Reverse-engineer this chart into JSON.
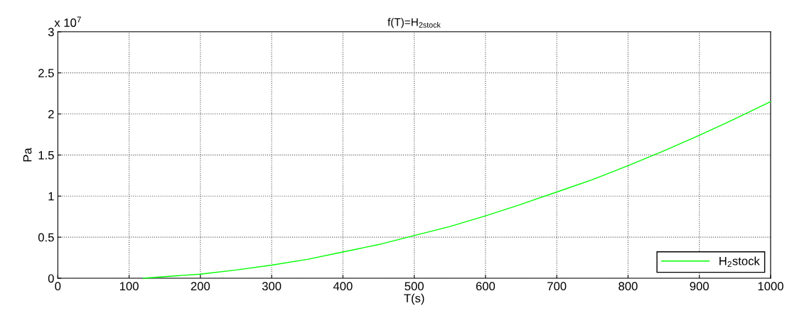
{
  "chart_data": {
    "type": "line",
    "title": "f(T)=H$_{2stock}$",
    "xlabel": "T(s)",
    "ylabel": "Pa",
    "annotations": [
      "x 10$^{7}$"
    ],
    "x": [
      120,
      150,
      200,
      250,
      300,
      350,
      400,
      450,
      500,
      550,
      600,
      650,
      700,
      750,
      800,
      850,
      900,
      950,
      1000
    ],
    "series": [
      {
        "name": "H$_{2}$stock",
        "color": "#00ff00",
        "values": [
          0,
          0.02,
          0.05,
          0.1,
          0.16,
          0.23,
          0.32,
          0.41,
          0.52,
          0.63,
          0.76,
          0.9,
          1.05,
          1.2,
          1.37,
          1.55,
          1.74,
          1.94,
          2.15
        ]
      }
    ],
    "xlim": [
      0,
      1000
    ],
    "ylim": [
      0,
      3
    ],
    "xticks": [
      0,
      100,
      200,
      300,
      400,
      500,
      600,
      700,
      800,
      900,
      1000
    ],
    "yticks": [
      0,
      0.5,
      1,
      1.5,
      2,
      2.5,
      3
    ],
    "grid": true,
    "legend": "bottom right",
    "marker": "none",
    "line_style": "solid"
  }
}
